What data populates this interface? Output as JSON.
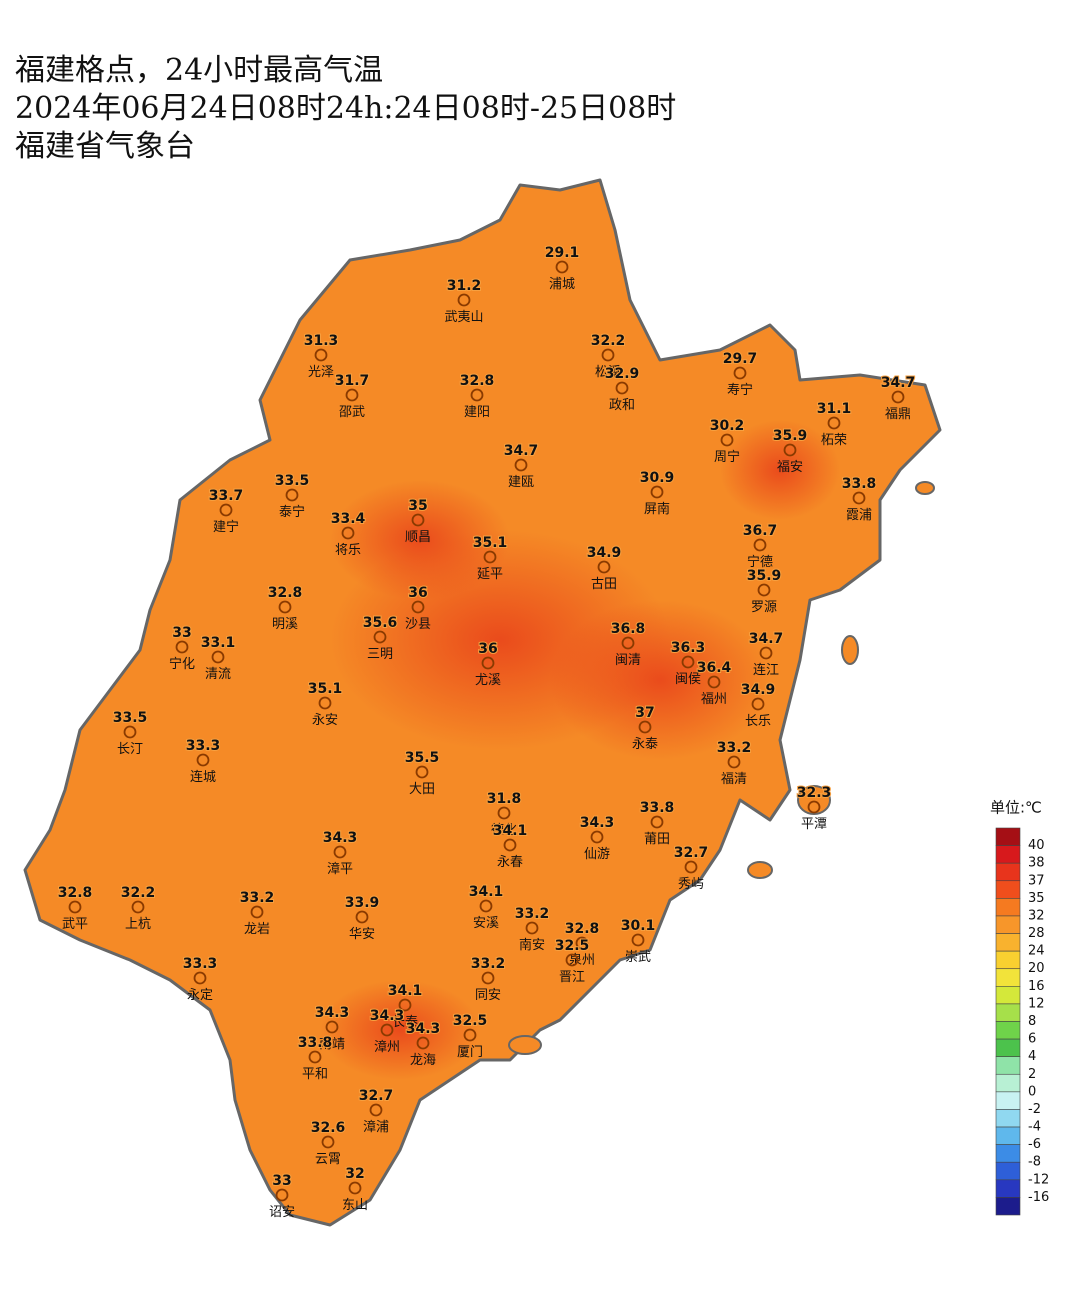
{
  "header": {
    "lines": [
      "福建格点，24小时最高气温",
      "2024年06月24日08时24h:24日08时-25日08时",
      "福建省气象台"
    ]
  },
  "stations": [
    {
      "name": "浦城",
      "value": 29.1
    },
    {
      "name": "武夷山",
      "value": 31.2
    },
    {
      "name": "光泽",
      "value": 31.3
    },
    {
      "name": "松溪",
      "value": 32.2
    },
    {
      "name": "政和",
      "value": 32.9
    },
    {
      "name": "寿宁",
      "value": 29.7
    },
    {
      "name": "福鼎",
      "value": 34.7
    },
    {
      "name": "邵武",
      "value": 31.7
    },
    {
      "name": "建阳",
      "value": 32.8
    },
    {
      "name": "柘荣",
      "value": 31.1
    },
    {
      "name": "周宁",
      "value": 30.2
    },
    {
      "name": "福安",
      "value": 35.9
    },
    {
      "name": "建瓯",
      "value": 34.7
    },
    {
      "name": "屏南",
      "value": 30.9
    },
    {
      "name": "霞浦",
      "value": 33.8
    },
    {
      "name": "建宁",
      "value": 33.7
    },
    {
      "name": "泰宁",
      "value": 33.5
    },
    {
      "name": "顺昌",
      "value": 35
    },
    {
      "name": "将乐",
      "value": 33.4
    },
    {
      "name": "延平",
      "value": 35.1
    },
    {
      "name": "古田",
      "value": 34.9
    },
    {
      "name": "宁德",
      "value": 36.7
    },
    {
      "name": "罗源",
      "value": 35.9
    },
    {
      "name": "明溪",
      "value": 32.8
    },
    {
      "name": "沙县",
      "value": 36
    },
    {
      "name": "宁化",
      "value": 33
    },
    {
      "name": "清流",
      "value": 33.1
    },
    {
      "name": "三明",
      "value": 35.6
    },
    {
      "name": "尤溪",
      "value": 36
    },
    {
      "name": "闽清",
      "value": 36.8
    },
    {
      "name": "闽侯",
      "value": 36.3
    },
    {
      "name": "连江",
      "value": 34.7
    },
    {
      "name": "福州",
      "value": 36.4
    },
    {
      "name": "永安",
      "value": 35.1
    },
    {
      "name": "长乐",
      "value": 34.9
    },
    {
      "name": "长汀",
      "value": 33.5
    },
    {
      "name": "永泰",
      "value": 37
    },
    {
      "name": "连城",
      "value": 33.3
    },
    {
      "name": "福清",
      "value": 33.2
    },
    {
      "name": "大田",
      "value": 35.5
    },
    {
      "name": "平潭",
      "value": 32.3
    },
    {
      "name": "德化",
      "value": 31.8
    },
    {
      "name": "莆田",
      "value": 33.8
    },
    {
      "name": "仙游",
      "value": 34.3
    },
    {
      "name": "永春",
      "value": 34.1
    },
    {
      "name": "漳平",
      "value": 34.3
    },
    {
      "name": "秀屿",
      "value": 32.7
    },
    {
      "name": "武平",
      "value": 32.8
    },
    {
      "name": "上杭",
      "value": 32.2
    },
    {
      "name": "龙岩",
      "value": 33.2
    },
    {
      "name": "华安",
      "value": 33.9
    },
    {
      "name": "安溪",
      "value": 34.1
    },
    {
      "name": "南安",
      "value": 33.2
    },
    {
      "name": "泉州",
      "value": 32.8
    },
    {
      "name": "崇武",
      "value": 30.1
    },
    {
      "name": "晋江",
      "value": 32.5
    },
    {
      "name": "永定",
      "value": 33.3
    },
    {
      "name": "同安",
      "value": 33.2
    },
    {
      "name": "长泰",
      "value": 34.1
    },
    {
      "name": "南靖",
      "value": 34.3
    },
    {
      "name": "漳州",
      "value": 34.3
    },
    {
      "name": "龙海",
      "value": 34.3
    },
    {
      "name": "厦门",
      "value": 32.5
    },
    {
      "name": "平和",
      "value": 33.8
    },
    {
      "name": "漳浦",
      "value": 32.7
    },
    {
      "name": "云霄",
      "value": 32.6
    },
    {
      "name": "诏安",
      "value": 33
    },
    {
      "name": "东山",
      "value": 32
    }
  ],
  "legend": {
    "title": "单位:℃",
    "labels": [
      40,
      38,
      37,
      35,
      32,
      28,
      24,
      20,
      16,
      12,
      8,
      6,
      4,
      2,
      0,
      -2,
      -4,
      -6,
      -8,
      -12,
      -16
    ],
    "colors": [
      "#a50f15",
      "#d7191c",
      "#e8341c",
      "#f04e1c",
      "#f57a20",
      "#f7962a",
      "#f9b22e",
      "#f9d030",
      "#f2e33a",
      "#d4e83a",
      "#a6e04a",
      "#6fd34a",
      "#4cc24c",
      "#8fe3a8",
      "#b8f0d4",
      "#c8f2f2",
      "#90d8f0",
      "#5fb8ec",
      "#3c8ce6",
      "#2e5fd8",
      "#2838c0",
      "#1c1c8c"
    ]
  }
}
